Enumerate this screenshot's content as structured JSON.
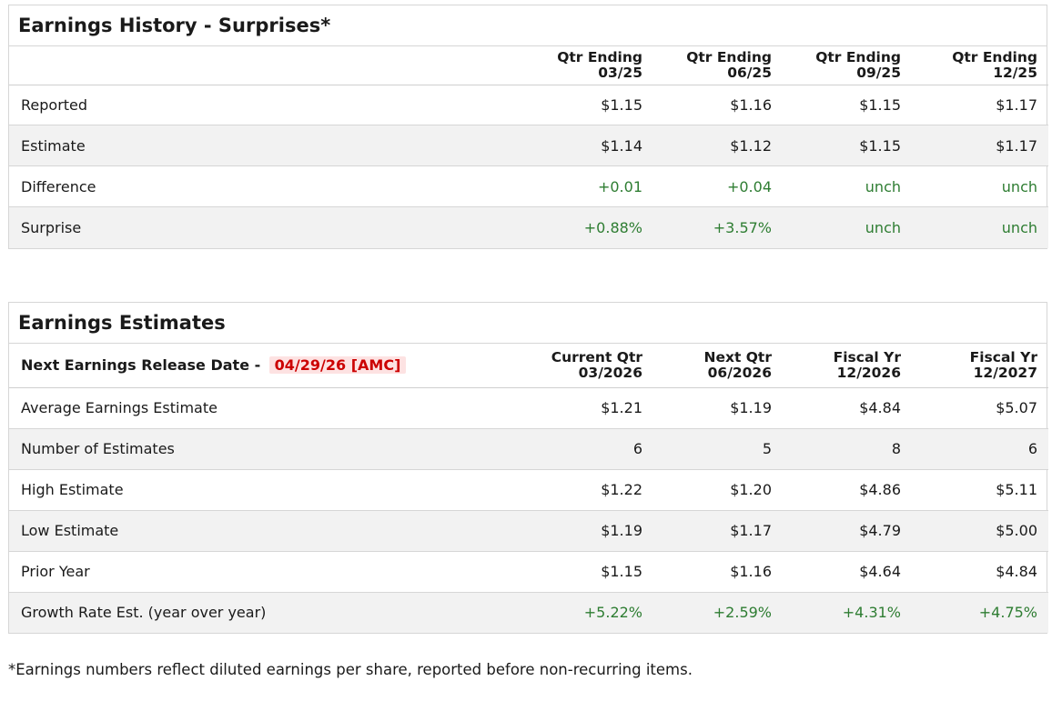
{
  "history": {
    "title": "Earnings History - Surprises*",
    "columns": [
      {
        "line1": "Qtr Ending",
        "line2": "03/25"
      },
      {
        "line1": "Qtr Ending",
        "line2": "06/25"
      },
      {
        "line1": "Qtr Ending",
        "line2": "09/25"
      },
      {
        "line1": "Qtr Ending",
        "line2": "12/25"
      }
    ],
    "rows": [
      {
        "label": "Reported",
        "values": [
          "$1.15",
          "$1.16",
          "$1.15",
          "$1.17"
        ]
      },
      {
        "label": "Estimate",
        "values": [
          "$1.14",
          "$1.12",
          "$1.15",
          "$1.17"
        ]
      },
      {
        "label": "Difference",
        "values": [
          "+0.01",
          "+0.04",
          "unch",
          "unch"
        ]
      },
      {
        "label": "Surprise",
        "values": [
          "+0.88%",
          "+3.57%",
          "unch",
          "unch"
        ]
      }
    ]
  },
  "estimates": {
    "title": "Earnings Estimates",
    "release_label": "Next Earnings Release Date -",
    "release_date": "04/29/26 [AMC]",
    "columns": [
      {
        "line1": "Current Qtr",
        "line2": "03/2026"
      },
      {
        "line1": "Next Qtr",
        "line2": "06/2026"
      },
      {
        "line1": "Fiscal Yr",
        "line2": "12/2026"
      },
      {
        "line1": "Fiscal Yr",
        "line2": "12/2027"
      }
    ],
    "rows": [
      {
        "label": "Average Earnings Estimate",
        "values": [
          "$1.21",
          "$1.19",
          "$4.84",
          "$5.07"
        ]
      },
      {
        "label": "Number of Estimates",
        "values": [
          "6",
          "5",
          "8",
          "6"
        ]
      },
      {
        "label": "High Estimate",
        "values": [
          "$1.22",
          "$1.20",
          "$4.86",
          "$5.11"
        ]
      },
      {
        "label": "Low Estimate",
        "values": [
          "$1.19",
          "$1.17",
          "$4.79",
          "$5.00"
        ]
      },
      {
        "label": "Prior Year",
        "values": [
          "$1.15",
          "$1.16",
          "$4.64",
          "$4.84"
        ]
      },
      {
        "label": "Growth Rate Est. (year over year)",
        "values": [
          "+5.22%",
          "+2.59%",
          "+4.31%",
          "+4.75%"
        ]
      }
    ]
  },
  "footnote": "*Earnings numbers reflect diluted earnings per share, reported before non-recurring items.",
  "colors": {
    "positive": "#2e7d32",
    "release_date_text": "#cc0000",
    "release_date_bg": "#fde2e2",
    "alt_row": "#f2f2f2"
  }
}
